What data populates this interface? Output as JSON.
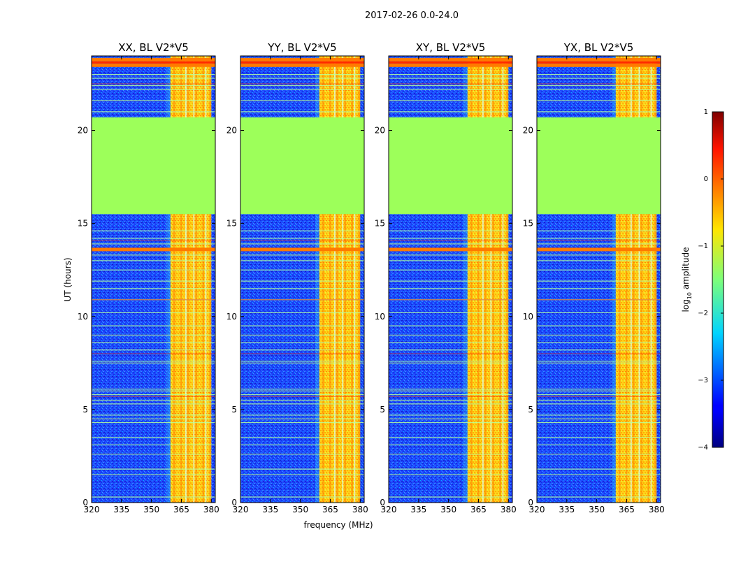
{
  "figure": {
    "suptitle": "2017-02-26 0.0-24.0",
    "xlabel": "frequency (MHz)",
    "ylabel": "UT (hours)"
  },
  "colorbar": {
    "label": "log10 amplitude",
    "label_base": "log",
    "label_sub": "10",
    "label_rest": " amplitude",
    "ticks": [
      "1",
      "0",
      "−1",
      "−2",
      "−3",
      "−4"
    ],
    "range": [
      -4,
      1
    ],
    "colormap": "jet"
  },
  "colors": {
    "axis": "#000000",
    "noise_low": "#1e3cff",
    "flag_fill": "#9dff5a",
    "rfi_orange": "#ff7a00",
    "rfi_yellow": "#ffe000",
    "line_red": "#ff2a00"
  },
  "chart_data": [
    {
      "type": "heatmap",
      "title": "XX, BL V2*V5",
      "xlim": [
        320,
        382
      ],
      "ylim": [
        0,
        24
      ],
      "xticks": [
        "320",
        "335",
        "350",
        "365",
        "380"
      ],
      "yticks": [
        "0",
        "5",
        "10",
        "15",
        "20"
      ],
      "flagged_ut_range": [
        15.5,
        20.7
      ],
      "rfi_band_mhz": [
        359.5,
        380
      ],
      "strong_rfi_ut_hours": [
        13.6,
        23.5,
        23.8
      ]
    },
    {
      "type": "heatmap",
      "title": "YY, BL V2*V5",
      "xlim": [
        320,
        382
      ],
      "ylim": [
        0,
        24
      ],
      "xticks": [
        "320",
        "335",
        "350",
        "365",
        "380"
      ],
      "yticks": [
        "0",
        "5",
        "10",
        "15",
        "20"
      ],
      "flagged_ut_range": [
        15.5,
        20.7
      ],
      "rfi_band_mhz": [
        359.5,
        380
      ],
      "strong_rfi_ut_hours": [
        13.6,
        23.5,
        23.8
      ]
    },
    {
      "type": "heatmap",
      "title": "XY, BL V2*V5",
      "xlim": [
        320,
        382
      ],
      "ylim": [
        0,
        24
      ],
      "xticks": [
        "320",
        "335",
        "350",
        "365",
        "380"
      ],
      "yticks": [
        "0",
        "5",
        "10",
        "15",
        "20"
      ],
      "flagged_ut_range": [
        15.5,
        20.7
      ],
      "rfi_band_mhz": [
        359.5,
        380
      ],
      "strong_rfi_ut_hours": [
        13.6,
        23.5,
        23.8
      ]
    },
    {
      "type": "heatmap",
      "title": "YX, BL V2*V5",
      "xlim": [
        320,
        382
      ],
      "ylim": [
        0,
        24
      ],
      "xticks": [
        "320",
        "335",
        "350",
        "365",
        "380"
      ],
      "yticks": [
        "0",
        "5",
        "10",
        "15",
        "20"
      ],
      "flagged_ut_range": [
        15.5,
        20.7
      ],
      "rfi_band_mhz": [
        359.5,
        380
      ],
      "strong_rfi_ut_hours": [
        13.6,
        23.5,
        23.8
      ]
    }
  ]
}
